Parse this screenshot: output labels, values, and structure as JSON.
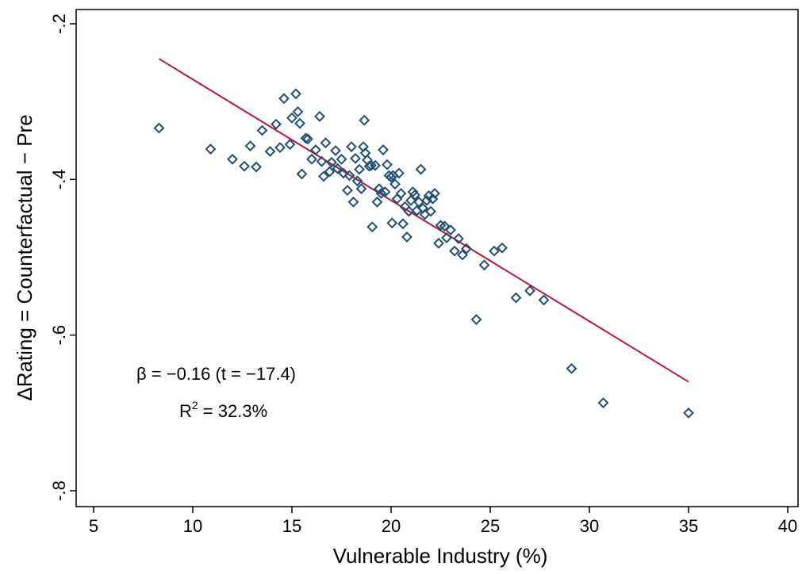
{
  "chart_data": {
    "type": "scatter",
    "xlabel": "Vulnerable Industry (%)",
    "ylabel": "ΔRating = Counterfactual − Pre",
    "xlim": [
      5,
      40
    ],
    "ylim": [
      -0.8,
      -0.2
    ],
    "x_ticks": [
      "5",
      "10",
      "15",
      "20",
      "25",
      "30",
      "35",
      "40"
    ],
    "x_tick_values": [
      5,
      10,
      15,
      20,
      25,
      30,
      35,
      40
    ],
    "y_ticks": [
      "-.2",
      "-.4",
      "-.6",
      "-.8"
    ],
    "y_tick_values": [
      -0.2,
      -0.4,
      -0.6,
      -0.8
    ],
    "grid": false,
    "colors": {
      "marker": "#1f4e79",
      "fit_line": "#c0143c",
      "frame": "#000000"
    },
    "fit_line": {
      "x": [
        8.3,
        35.0
      ],
      "y": [
        -0.245,
        -0.66
      ]
    },
    "annotations": {
      "beta": "β = −0.16 (t = −17.4)",
      "r2_base": "R",
      "r2_sup": "2",
      "r2_rest": " = 32.3%"
    },
    "points": [
      [
        8.3,
        -0.334
      ],
      [
        10.9,
        -0.361
      ],
      [
        12.0,
        -0.374
      ],
      [
        12.6,
        -0.383
      ],
      [
        12.9,
        -0.357
      ],
      [
        13.2,
        -0.384
      ],
      [
        13.5,
        -0.337
      ],
      [
        13.9,
        -0.364
      ],
      [
        14.2,
        -0.329
      ],
      [
        14.4,
        -0.359
      ],
      [
        14.6,
        -0.296
      ],
      [
        14.9,
        -0.355
      ],
      [
        15.0,
        -0.321
      ],
      [
        15.2,
        -0.29
      ],
      [
        15.3,
        -0.313
      ],
      [
        15.4,
        -0.328
      ],
      [
        15.5,
        -0.393
      ],
      [
        15.7,
        -0.347
      ],
      [
        15.8,
        -0.348
      ],
      [
        16.0,
        -0.374
      ],
      [
        16.2,
        -0.362
      ],
      [
        16.4,
        -0.319
      ],
      [
        16.5,
        -0.377
      ],
      [
        16.6,
        -0.396
      ],
      [
        16.7,
        -0.353
      ],
      [
        16.9,
        -0.39
      ],
      [
        17.0,
        -0.378
      ],
      [
        17.2,
        -0.363
      ],
      [
        17.3,
        -0.386
      ],
      [
        17.5,
        -0.374
      ],
      [
        17.6,
        -0.392
      ],
      [
        17.8,
        -0.414
      ],
      [
        17.9,
        -0.395
      ],
      [
        18.0,
        -0.358
      ],
      [
        18.1,
        -0.429
      ],
      [
        18.2,
        -0.373
      ],
      [
        18.3,
        -0.402
      ],
      [
        18.4,
        -0.387
      ],
      [
        18.5,
        -0.412
      ],
      [
        18.6,
        -0.358
      ],
      [
        18.65,
        -0.324
      ],
      [
        18.7,
        -0.366
      ],
      [
        18.8,
        -0.375
      ],
      [
        18.9,
        -0.383
      ],
      [
        19.0,
        -0.382
      ],
      [
        19.05,
        -0.461
      ],
      [
        19.2,
        -0.382
      ],
      [
        19.3,
        -0.429
      ],
      [
        19.4,
        -0.412
      ],
      [
        19.5,
        -0.418
      ],
      [
        19.6,
        -0.362
      ],
      [
        19.7,
        -0.416
      ],
      [
        19.8,
        -0.381
      ],
      [
        19.9,
        -0.395
      ],
      [
        20.0,
        -0.397
      ],
      [
        20.05,
        -0.456
      ],
      [
        20.1,
        -0.395
      ],
      [
        20.2,
        -0.406
      ],
      [
        20.3,
        -0.425
      ],
      [
        20.4,
        -0.392
      ],
      [
        20.5,
        -0.418
      ],
      [
        20.6,
        -0.457
      ],
      [
        20.7,
        -0.435
      ],
      [
        20.8,
        -0.474
      ],
      [
        20.9,
        -0.441
      ],
      [
        21.0,
        -0.427
      ],
      [
        21.1,
        -0.416
      ],
      [
        21.2,
        -0.42
      ],
      [
        21.3,
        -0.44
      ],
      [
        21.4,
        -0.429
      ],
      [
        21.5,
        -0.387
      ],
      [
        21.6,
        -0.437
      ],
      [
        21.7,
        -0.445
      ],
      [
        21.8,
        -0.427
      ],
      [
        21.9,
        -0.421
      ],
      [
        22.0,
        -0.441
      ],
      [
        22.1,
        -0.425
      ],
      [
        22.2,
        -0.418
      ],
      [
        22.4,
        -0.482
      ],
      [
        22.5,
        -0.459
      ],
      [
        22.7,
        -0.46
      ],
      [
        22.8,
        -0.475
      ],
      [
        23.0,
        -0.465
      ],
      [
        23.2,
        -0.492
      ],
      [
        23.4,
        -0.476
      ],
      [
        23.6,
        -0.497
      ],
      [
        23.8,
        -0.489
      ],
      [
        24.3,
        -0.58
      ],
      [
        24.7,
        -0.51
      ],
      [
        25.2,
        -0.492
      ],
      [
        25.6,
        -0.488
      ],
      [
        26.3,
        -0.552
      ],
      [
        27.0,
        -0.543
      ],
      [
        27.7,
        -0.555
      ],
      [
        29.1,
        -0.643
      ],
      [
        30.7,
        -0.687
      ],
      [
        35.0,
        -0.7
      ]
    ]
  }
}
